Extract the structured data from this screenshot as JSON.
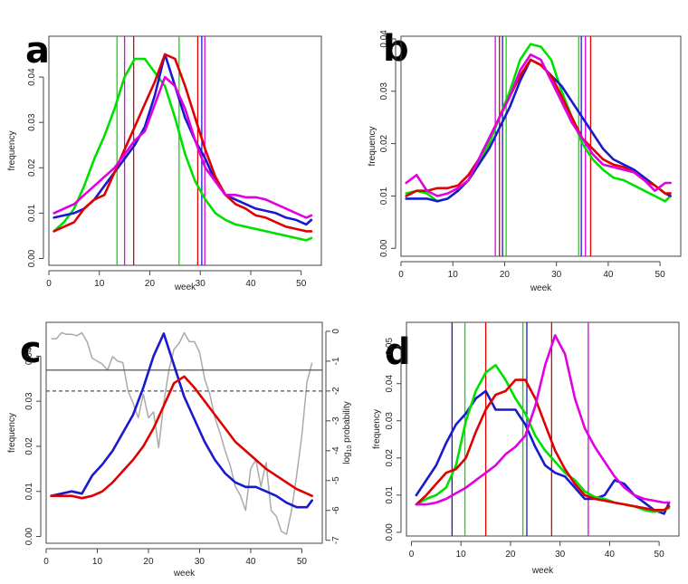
{
  "chart_data": [
    {
      "panel": "a",
      "type": "line",
      "xlabel": "week",
      "ylabel": "frequency",
      "xlim": [
        0,
        54
      ],
      "ylim": [
        -0.0015,
        0.049
      ],
      "xticks": [
        0,
        10,
        20,
        30,
        40,
        50
      ],
      "yticks": [
        0.0,
        0.01,
        0.02,
        0.03,
        0.04
      ],
      "ytick_labels": [
        "0.00",
        "0.01",
        "0.02",
        "0.03",
        "0.04"
      ],
      "x": [
        1,
        3,
        5,
        7,
        9,
        11,
        13,
        15,
        17,
        19,
        21,
        23,
        25,
        27,
        29,
        31,
        33,
        35,
        37,
        39,
        41,
        43,
        45,
        47,
        49,
        51,
        52
      ],
      "series": [
        {
          "color": "#00e000",
          "values": [
            0.006,
            0.008,
            0.011,
            0.016,
            0.022,
            0.027,
            0.033,
            0.04,
            0.044,
            0.044,
            0.041,
            0.038,
            0.031,
            0.023,
            0.017,
            0.013,
            0.01,
            0.0085,
            0.0075,
            0.007,
            0.0065,
            0.006,
            0.0055,
            0.005,
            0.0045,
            0.004,
            0.0045
          ]
        },
        {
          "color": "#1a1acc",
          "values": [
            0.009,
            0.0095,
            0.01,
            0.011,
            0.013,
            0.016,
            0.019,
            0.022,
            0.025,
            0.029,
            0.036,
            0.045,
            0.038,
            0.031,
            0.026,
            0.022,
            0.017,
            0.014,
            0.013,
            0.012,
            0.011,
            0.0105,
            0.01,
            0.009,
            0.0085,
            0.0075,
            0.0085
          ]
        },
        {
          "color": "#e00000",
          "values": [
            0.006,
            0.007,
            0.008,
            0.011,
            0.013,
            0.014,
            0.019,
            0.024,
            0.029,
            0.034,
            0.039,
            0.045,
            0.044,
            0.038,
            0.031,
            0.024,
            0.018,
            0.014,
            0.012,
            0.011,
            0.0095,
            0.009,
            0.008,
            0.007,
            0.0065,
            0.006,
            0.006
          ]
        },
        {
          "color": "#e000e0",
          "values": [
            0.01,
            0.011,
            0.012,
            0.014,
            0.016,
            0.018,
            0.02,
            0.023,
            0.026,
            0.028,
            0.034,
            0.04,
            0.038,
            0.033,
            0.026,
            0.02,
            0.017,
            0.014,
            0.014,
            0.0135,
            0.0135,
            0.013,
            0.012,
            0.011,
            0.01,
            0.009,
            0.0095
          ]
        }
      ],
      "vlines": [
        {
          "x": 13.5,
          "color": "#00e000"
        },
        {
          "x": 15.0,
          "color": "#e000e0"
        },
        {
          "x": 16.8,
          "color": "#e00000"
        },
        {
          "x": 25.8,
          "color": "#00e000"
        },
        {
          "x": 29.5,
          "color": "#e00000"
        },
        {
          "x": 30.3,
          "color": "#1a1acc"
        },
        {
          "x": 30.9,
          "color": "#e000e0"
        }
      ]
    },
    {
      "panel": "b",
      "type": "line",
      "xlabel": "week",
      "ylabel": "frequency",
      "xlim": [
        0,
        54
      ],
      "ylim": [
        -0.0015,
        0.0405
      ],
      "xticks": [
        0,
        10,
        20,
        30,
        40,
        50
      ],
      "yticks": [
        0.0,
        0.01,
        0.02,
        0.03,
        0.04
      ],
      "ytick_labels": [
        "0.00",
        "0.01",
        "0.02",
        "0.03",
        "0.04"
      ],
      "x": [
        1,
        3,
        5,
        7,
        9,
        11,
        13,
        15,
        17,
        19,
        21,
        23,
        25,
        27,
        29,
        31,
        33,
        35,
        37,
        39,
        41,
        43,
        45,
        47,
        49,
        51,
        52
      ],
      "series": [
        {
          "color": "#00e000",
          "values": [
            0.0105,
            0.011,
            0.0105,
            0.009,
            0.0095,
            0.011,
            0.013,
            0.016,
            0.02,
            0.025,
            0.03,
            0.036,
            0.039,
            0.0385,
            0.036,
            0.03,
            0.025,
            0.02,
            0.017,
            0.015,
            0.0135,
            0.013,
            0.012,
            0.011,
            0.01,
            0.009,
            0.01
          ]
        },
        {
          "color": "#1a1acc",
          "values": [
            0.0095,
            0.0095,
            0.0095,
            0.009,
            0.0095,
            0.011,
            0.013,
            0.016,
            0.019,
            0.023,
            0.027,
            0.032,
            0.036,
            0.035,
            0.033,
            0.031,
            0.028,
            0.025,
            0.022,
            0.019,
            0.017,
            0.016,
            0.015,
            0.0135,
            0.012,
            0.0105,
            0.01
          ]
        },
        {
          "color": "#e00000",
          "values": [
            0.01,
            0.011,
            0.011,
            0.0115,
            0.0115,
            0.012,
            0.014,
            0.017,
            0.021,
            0.025,
            0.029,
            0.033,
            0.036,
            0.035,
            0.033,
            0.029,
            0.025,
            0.021,
            0.019,
            0.017,
            0.016,
            0.0155,
            0.0145,
            0.013,
            0.012,
            0.0105,
            0.0105
          ]
        },
        {
          "color": "#e000e0",
          "values": [
            0.0125,
            0.014,
            0.011,
            0.01,
            0.0105,
            0.0115,
            0.013,
            0.017,
            0.021,
            0.025,
            0.029,
            0.034,
            0.037,
            0.036,
            0.032,
            0.028,
            0.024,
            0.021,
            0.018,
            0.016,
            0.0155,
            0.015,
            0.0145,
            0.013,
            0.011,
            0.0125,
            0.0125
          ]
        }
      ],
      "vlines": [
        {
          "x": 18.2,
          "color": "#e000e0"
        },
        {
          "x": 19.0,
          "color": "#e00000"
        },
        {
          "x": 19.6,
          "color": "#1a1acc"
        },
        {
          "x": 20.3,
          "color": "#00e000"
        },
        {
          "x": 34.3,
          "color": "#00e000"
        },
        {
          "x": 34.8,
          "color": "#1a1acc"
        },
        {
          "x": 35.6,
          "color": "#e000e0"
        },
        {
          "x": 36.6,
          "color": "#e00000"
        }
      ]
    },
    {
      "panel": "c",
      "type": "line",
      "xlabel": "week",
      "ylabel": "frequency",
      "y2label_base": "log",
      "y2label_sub": "10",
      "y2label_rest": " probability",
      "xlim": [
        0,
        54
      ],
      "ylim": [
        -0.0015,
        0.0475
      ],
      "y2lim": [
        -7.1,
        0.3
      ],
      "xticks": [
        0,
        10,
        20,
        30,
        40,
        50
      ],
      "yticks": [
        0.0,
        0.01,
        0.02,
        0.03,
        0.04
      ],
      "ytick_labels": [
        "0.00",
        "0.01",
        "0.02",
        "0.03",
        "0.04"
      ],
      "y2ticks": [
        0,
        -1,
        -2,
        -3,
        -4,
        -5,
        -6,
        -7
      ],
      "y2tick_labels": [
        "0",
        "-1",
        "-2",
        "-3",
        "-4",
        "-5",
        "-6",
        "-7"
      ],
      "x": [
        1,
        3,
        5,
        7,
        9,
        11,
        13,
        15,
        17,
        19,
        21,
        23,
        25,
        27,
        29,
        31,
        33,
        35,
        37,
        39,
        41,
        43,
        45,
        47,
        49,
        51,
        52
      ],
      "series": [
        {
          "color": "#1a1acc",
          "values": [
            0.009,
            0.0095,
            0.01,
            0.0095,
            0.0135,
            0.016,
            0.019,
            0.023,
            0.027,
            0.033,
            0.04,
            0.045,
            0.038,
            0.031,
            0.026,
            0.021,
            0.017,
            0.014,
            0.012,
            0.011,
            0.011,
            0.01,
            0.009,
            0.0075,
            0.0065,
            0.0065,
            0.008
          ]
        },
        {
          "color": "#e00000",
          "values": [
            0.009,
            0.009,
            0.009,
            0.0085,
            0.009,
            0.01,
            0.012,
            0.0145,
            0.017,
            0.02,
            0.024,
            0.029,
            0.034,
            0.0355,
            0.033,
            0.03,
            0.027,
            0.024,
            0.021,
            0.019,
            0.017,
            0.015,
            0.0135,
            0.012,
            0.0105,
            0.0095,
            0.009
          ]
        }
      ],
      "probability_series": {
        "color": "#aaaaaa",
        "x": [
          1,
          2,
          3,
          4,
          5,
          6,
          7,
          8,
          9,
          10,
          11,
          12,
          13,
          14,
          15,
          16,
          17,
          18,
          19,
          20,
          21,
          22,
          23,
          24,
          25,
          26,
          27,
          28,
          29,
          30,
          31,
          32,
          33,
          34,
          35,
          36,
          37,
          38,
          39,
          40,
          41,
          42,
          43,
          44,
          45,
          46,
          47,
          48,
          49,
          50,
          51,
          52
        ],
        "values": [
          -0.25,
          -0.25,
          -0.05,
          -0.1,
          -0.1,
          -0.15,
          -0.05,
          -0.35,
          -0.9,
          -1.0,
          -1.1,
          -1.3,
          -0.85,
          -1.0,
          -1.05,
          -2.0,
          -2.4,
          -2.9,
          -2.1,
          -2.9,
          -2.7,
          -3.9,
          -2.4,
          -1.3,
          -0.6,
          -0.4,
          -0.05,
          -0.35,
          -0.35,
          -0.7,
          -1.6,
          -2.1,
          -2.9,
          -3.4,
          -4.0,
          -4.5,
          -5.2,
          -5.5,
          -6.0,
          -4.6,
          -4.3,
          -5.2,
          -4.4,
          -6.0,
          -6.2,
          -6.7,
          -6.8,
          -6.0,
          -4.8,
          -3.5,
          -1.7,
          -1.05
        ]
      },
      "hlines": [
        {
          "y2": -1.3,
          "style": "solid",
          "color": "#555555"
        },
        {
          "y2": -2.0,
          "style": "dashed",
          "color": "#555555"
        }
      ]
    },
    {
      "panel": "d",
      "type": "line",
      "xlabel": "week",
      "ylabel": "frequency",
      "xlim": [
        -1,
        54
      ],
      "ylim": [
        -0.001,
        0.0565
      ],
      "xticks": [
        0,
        10,
        20,
        30,
        40,
        50
      ],
      "yticks": [
        0.0,
        0.01,
        0.02,
        0.03,
        0.04,
        0.05
      ],
      "ytick_labels": [
        "0.00",
        "0.01",
        "0.02",
        "0.03",
        "0.04",
        "0.05"
      ],
      "x": [
        1,
        3,
        5,
        7,
        9,
        11,
        13,
        15,
        17,
        19,
        21,
        23,
        25,
        27,
        29,
        31,
        33,
        35,
        37,
        39,
        41,
        43,
        45,
        47,
        49,
        51,
        52
      ],
      "series": [
        {
          "color": "#1a1acc",
          "values": [
            0.01,
            0.014,
            0.018,
            0.024,
            0.029,
            0.032,
            0.036,
            0.038,
            0.033,
            0.033,
            0.033,
            0.029,
            0.023,
            0.018,
            0.016,
            0.015,
            0.012,
            0.009,
            0.009,
            0.01,
            0.014,
            0.013,
            0.01,
            0.008,
            0.006,
            0.005,
            0.008
          ]
        },
        {
          "color": "#00e000",
          "values": [
            0.0075,
            0.009,
            0.01,
            0.012,
            0.018,
            0.03,
            0.038,
            0.043,
            0.045,
            0.041,
            0.036,
            0.032,
            0.026,
            0.022,
            0.019,
            0.016,
            0.014,
            0.011,
            0.0095,
            0.009,
            0.008,
            0.0075,
            0.007,
            0.006,
            0.0055,
            0.006,
            0.0065
          ]
        },
        {
          "color": "#e00000",
          "values": [
            0.0075,
            0.01,
            0.013,
            0.016,
            0.017,
            0.02,
            0.027,
            0.033,
            0.037,
            0.038,
            0.041,
            0.041,
            0.036,
            0.029,
            0.022,
            0.017,
            0.013,
            0.01,
            0.009,
            0.0085,
            0.008,
            0.0075,
            0.007,
            0.0065,
            0.006,
            0.006,
            0.007
          ]
        },
        {
          "color": "#e000e0",
          "values": [
            0.0075,
            0.0075,
            0.008,
            0.009,
            0.0105,
            0.012,
            0.014,
            0.016,
            0.018,
            0.021,
            0.023,
            0.026,
            0.034,
            0.045,
            0.053,
            0.048,
            0.036,
            0.028,
            0.023,
            0.019,
            0.015,
            0.012,
            0.01,
            0.009,
            0.0085,
            0.008,
            0.008
          ]
        }
      ],
      "vlines": [
        {
          "x": 8.2,
          "color": "#1a1acc"
        },
        {
          "x": 10.8,
          "color": "#00e000"
        },
        {
          "x": 15.0,
          "color": "#e00000"
        },
        {
          "x": 22.5,
          "color": "#00e000"
        },
        {
          "x": 23.3,
          "color": "#1a1acc"
        },
        {
          "x": 28.3,
          "color": "#e00000"
        },
        {
          "x": 35.7,
          "color": "#e000e0"
        }
      ]
    }
  ]
}
